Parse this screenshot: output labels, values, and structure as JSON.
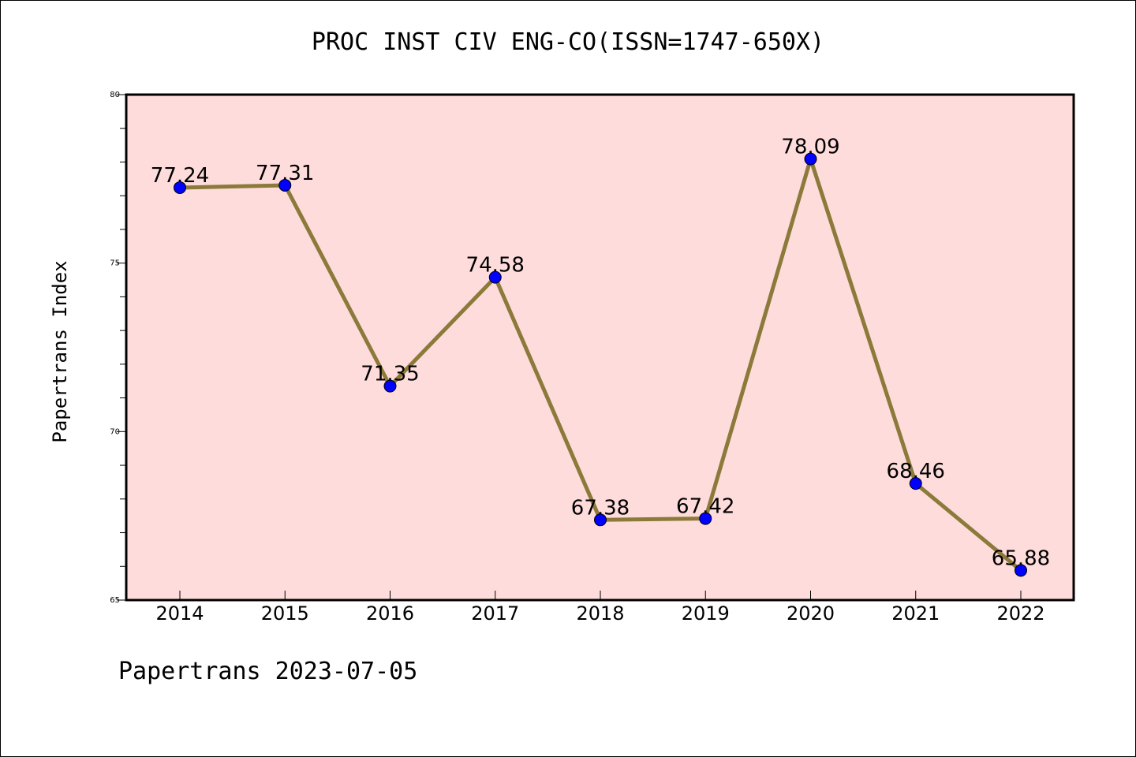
{
  "chart_data": {
    "type": "line",
    "title": "PROC INST CIV ENG-CO(ISSN=1747-650X)",
    "xlabel": "",
    "ylabel": "Papertrans Index",
    "x": [
      "2014",
      "2015",
      "2016",
      "2017",
      "2018",
      "2019",
      "2020",
      "2021",
      "2022"
    ],
    "series": [
      {
        "values": [
          77.24,
          77.31,
          71.35,
          74.58,
          67.38,
          67.42,
          78.09,
          68.46,
          65.88
        ],
        "labels": [
          "77.24",
          "77.31",
          "71.35",
          "74.58",
          "67.38",
          "67.42",
          "78.09",
          "68.46",
          "65.88"
        ],
        "line_color": "#8c7a3a",
        "marker_color": "#0000ff"
      }
    ],
    "ylim": [
      65,
      80
    ],
    "yticks": [
      "65",
      "70",
      "75",
      "80"
    ],
    "grid": false,
    "plot_background": "#ffdcdc"
  },
  "footer": {
    "text": "Papertrans 2023-07-05"
  }
}
